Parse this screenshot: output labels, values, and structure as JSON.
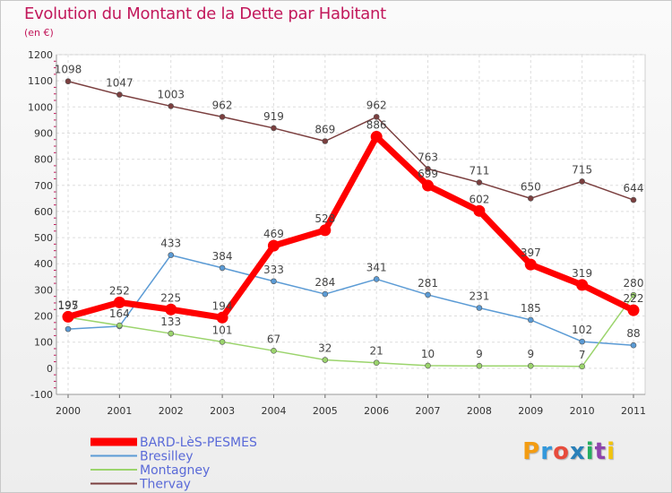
{
  "header": {
    "title": "Evolution du Montant de la Dette par Habitant",
    "unit": "(en €)"
  },
  "logo": {
    "text": "Proxiti",
    "colors": [
      "#f39c12",
      "#3498db",
      "#e74c3c",
      "#2980b9",
      "#27ae60",
      "#8e44ad",
      "#f1c40f"
    ]
  },
  "chart_data": {
    "type": "line",
    "title": "Evolution du Montant de la Dette par Habitant",
    "ylabel": "(en €)",
    "xlabel": "",
    "x": [
      "2000",
      "2001",
      "2002",
      "2003",
      "2004",
      "2005",
      "2006",
      "2007",
      "2008",
      "2009",
      "2010",
      "2011"
    ],
    "ylim": [
      -100,
      1200
    ],
    "yticks": [
      -100,
      0,
      100,
      200,
      300,
      400,
      500,
      600,
      700,
      800,
      900,
      1000,
      1100,
      1200
    ],
    "grid": true,
    "legend_position": "bottom-left",
    "series": [
      {
        "name": "BARD-LèS-PESMES",
        "color": "#ff0000",
        "values": [
          197,
          252,
          225,
          194,
          469,
          528,
          886,
          699,
          602,
          397,
          319,
          222
        ]
      },
      {
        "name": "Bresilley",
        "color": "#5b9bd5",
        "values": [
          150,
          161,
          433,
          384,
          333,
          284,
          341,
          281,
          231,
          185,
          102,
          88
        ]
      },
      {
        "name": "Montagney",
        "color": "#9bd46c",
        "values": [
          195,
          164,
          133,
          101,
          67,
          32,
          21,
          10,
          9,
          9,
          7,
          280
        ]
      },
      {
        "name": "Thervay",
        "color": "#7b3f3f",
        "values": [
          1098,
          1047,
          1003,
          962,
          919,
          869,
          962,
          763,
          711,
          650,
          715,
          644
        ]
      }
    ],
    "data_labels": [
      {
        "series": 0,
        "values": [
          "197",
          "252",
          "225",
          "194",
          "469",
          "528",
          "886",
          "699",
          "602",
          "397",
          "319",
          "222"
        ]
      },
      {
        "series": 1,
        "values": [
          "",
          "",
          "433",
          "384",
          "333",
          "284",
          "341",
          "281",
          "231",
          "185",
          "102",
          "88"
        ]
      },
      {
        "series": 2,
        "values": [
          "195",
          "164",
          "133",
          "101",
          "67",
          "32",
          "21",
          "10",
          "9",
          "9",
          "7",
          "280"
        ]
      },
      {
        "series": 3,
        "values": [
          "1098",
          "1047",
          "1003",
          "962",
          "919",
          "869",
          "962",
          "763",
          "711",
          "650",
          "715",
          "644"
        ]
      }
    ]
  }
}
